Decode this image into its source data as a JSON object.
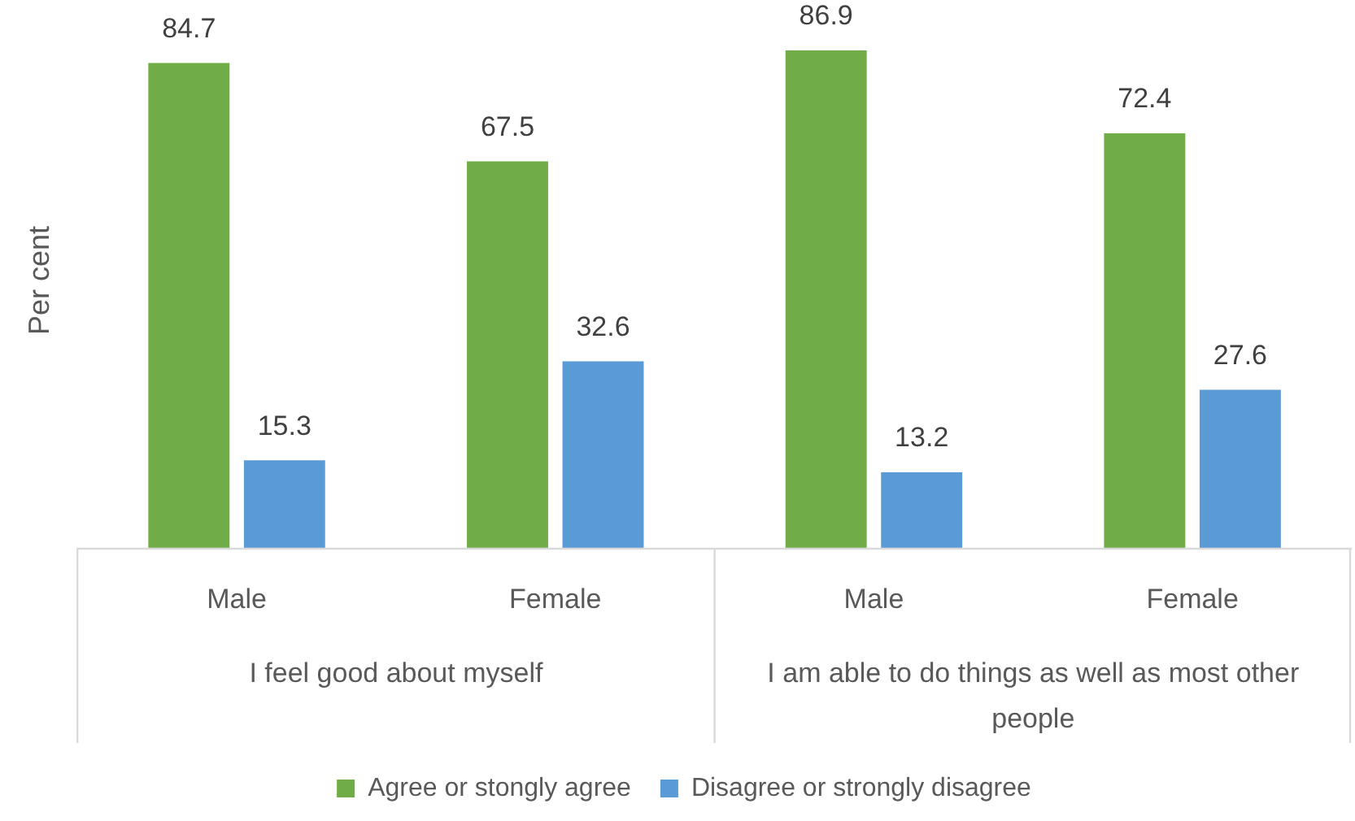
{
  "chart_data": {
    "type": "bar",
    "ylabel": "Per cent",
    "categories": [
      "Male",
      "Female",
      "Male",
      "Female"
    ],
    "series": [
      {
        "name": "Agree or stongly agree",
        "color": "#70ad47",
        "values": [
          84.7,
          67.5,
          86.9,
          72.4
        ]
      },
      {
        "name": "Disagree or strongly disagree",
        "color": "#5b9bd5",
        "values": [
          15.3,
          32.6,
          13.2,
          27.6
        ]
      }
    ],
    "annotations": [
      "I feel good about myself",
      "I am able to do things as well as most other people"
    ],
    "data_labels": true,
    "grid": false,
    "legend": "bottom"
  }
}
